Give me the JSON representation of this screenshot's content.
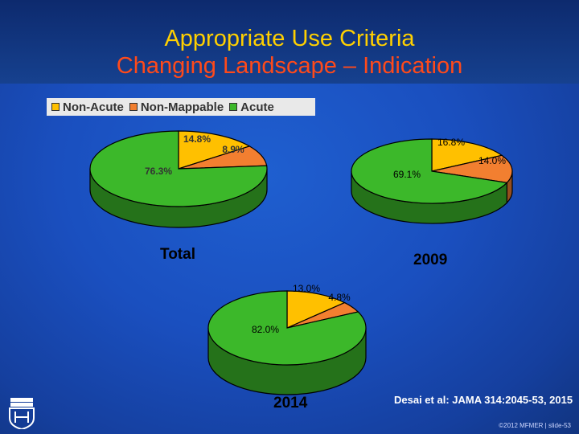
{
  "title": "Appropriate Use Criteria",
  "subtitle": "Changing Landscape – Indication",
  "legend": [
    {
      "label": "Non-Acute",
      "color": "#ffc000"
    },
    {
      "label": "Non-Mappable",
      "color": "#f27f30"
    },
    {
      "label": "Acute",
      "color": "#3cb82a"
    }
  ],
  "citation": "Desai et al:  JAMA 314:2045-53, 2015",
  "footer": "©2012 MFMER  |  slide-53",
  "logo_icon": "mayo-clinic-shield-icon",
  "chart_data": [
    {
      "type": "pie",
      "name": "Total",
      "categories": [
        "Non-Acute",
        "Non-Mappable",
        "Acute"
      ],
      "values": [
        14.8,
        8.9,
        76.3
      ],
      "labels": [
        "14.8%",
        "8.9%",
        "76.3%"
      ]
    },
    {
      "type": "pie",
      "name": "2009",
      "categories": [
        "Non-Acute",
        "Non-Mappable",
        "Acute"
      ],
      "values": [
        16.8,
        14.0,
        69.1
      ],
      "labels": [
        "16.8%",
        "14.0%",
        "69.1%"
      ]
    },
    {
      "type": "pie",
      "name": "2014",
      "categories": [
        "Non-Acute",
        "Non-Mappable",
        "Acute"
      ],
      "values": [
        13.0,
        4.8,
        82.0
      ],
      "labels": [
        "13.0%",
        "4.8%",
        "82.0%"
      ]
    }
  ]
}
